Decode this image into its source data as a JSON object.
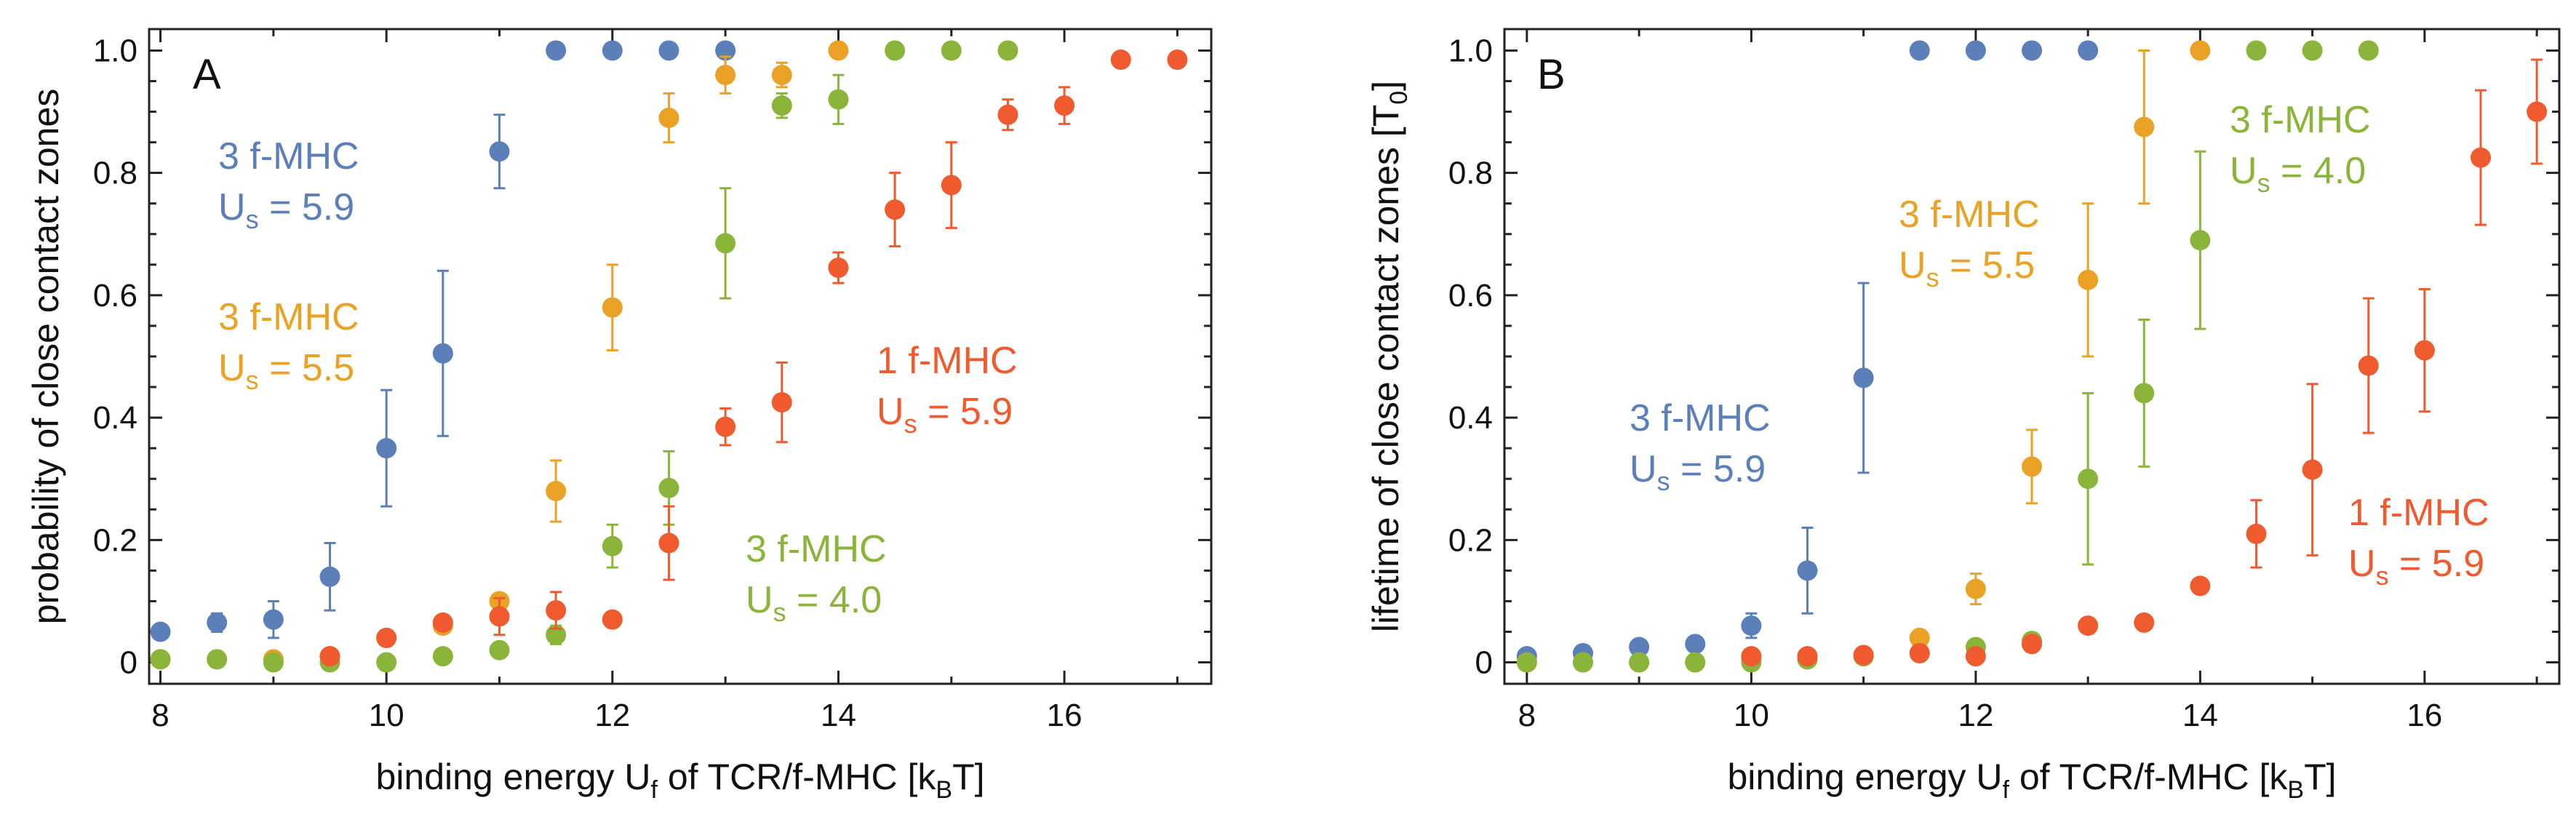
{
  "colors": {
    "blue": "#5b7fb9",
    "orange": "#e9a226",
    "green": "#8bb43a",
    "red": "#ef5a2e"
  },
  "chart_data": [
    {
      "type": "scatter",
      "panel": "A",
      "xlabel": "binding energy U_f of TCR/f-MHC [k_B T]",
      "xlabel_parts": {
        "pre": "binding energy U",
        "sub": "f",
        "mid": " of TCR/f-MHC [k",
        "sub2": "B",
        "post": "T]"
      },
      "ylabel": "probability of close contact zones",
      "xlim": [
        7.9,
        17.3
      ],
      "ylim": [
        -0.035,
        1.035
      ],
      "xticks": [
        8,
        10,
        12,
        14,
        16
      ],
      "yticks": [
        0,
        0.2,
        0.4,
        0.6,
        0.8,
        1.0
      ],
      "ytick_labels": [
        "0",
        "0.2",
        "0.4",
        "0.6",
        "0.8",
        "1.0"
      ],
      "series": [
        {
          "name": "3 f-MHC, U_s = 5.9",
          "color": "blue",
          "x": [
            8,
            8.5,
            9,
            9.5,
            10,
            10.5,
            11,
            11.5,
            12,
            12.5,
            13
          ],
          "y": [
            0.05,
            0.065,
            0.07,
            0.14,
            0.35,
            0.505,
            0.835,
            1.0,
            1.0,
            1.0,
            1.0
          ],
          "err": [
            0.008,
            0.015,
            0.03,
            0.055,
            0.095,
            0.135,
            0.06,
            0,
            0,
            0,
            0
          ]
        },
        {
          "name": "3 f-MHC, U_s = 5.5",
          "color": "orange",
          "x": [
            8,
            8.5,
            9,
            9.5,
            10,
            10.5,
            11,
            11.5,
            12,
            12.5,
            13,
            13.5,
            14
          ],
          "y": [
            0.005,
            0.005,
            0.005,
            0.01,
            0.04,
            0.06,
            0.1,
            0.28,
            0.58,
            0.89,
            0.96,
            0.96,
            1.0
          ],
          "err": [
            0.004,
            0.004,
            0.004,
            0.006,
            0.01,
            0.01,
            0.012,
            0.05,
            0.07,
            0.04,
            0.03,
            0.02,
            0
          ]
        },
        {
          "name": "3 f-MHC, U_s = 4.0",
          "color": "green",
          "x": [
            8,
            8.5,
            9,
            9.5,
            10,
            10.5,
            11,
            11.5,
            12,
            12.5,
            13,
            13.5,
            14,
            14.5,
            15,
            15.5
          ],
          "y": [
            0.005,
            0.005,
            0.0,
            0.0,
            0.0,
            0.01,
            0.02,
            0.045,
            0.19,
            0.285,
            0.685,
            0.91,
            0.92,
            1.0,
            1.0,
            1.0
          ],
          "err": [
            0.003,
            0.003,
            0.003,
            0.003,
            0.003,
            0.005,
            0.008,
            0.015,
            0.035,
            0.06,
            0.09,
            0.02,
            0.04,
            0,
            0,
            0
          ]
        },
        {
          "name": "1 f-MHC, U_s = 5.9",
          "color": "red",
          "x": [
            9.5,
            10,
            10.5,
            11,
            11.5,
            12,
            12.5,
            13,
            13.5,
            14,
            14.5,
            15,
            15.5,
            16,
            16.5,
            17
          ],
          "y": [
            0.01,
            0.04,
            0.065,
            0.075,
            0.085,
            0.07,
            0.195,
            0.385,
            0.425,
            0.645,
            0.74,
            0.78,
            0.895,
            0.91,
            0.985,
            0.985
          ],
          "err": [
            0.005,
            0.008,
            0.01,
            0.03,
            0.03,
            0.01,
            0.06,
            0.03,
            0.065,
            0.025,
            0.06,
            0.07,
            0.025,
            0.03,
            0.01,
            0.01
          ]
        }
      ],
      "annotations": [
        {
          "line1": "3 f-MHC",
          "line2_pre": "U",
          "line2_sub": "s",
          "line2_post": " = 5.9",
          "color": "blue"
        },
        {
          "line1": "3 f-MHC",
          "line2_pre": "U",
          "line2_sub": "s",
          "line2_post": " = 5.5",
          "color": "orange"
        },
        {
          "line1": "1 f-MHC",
          "line2_pre": "U",
          "line2_sub": "s",
          "line2_post": " = 5.9",
          "color": "red"
        },
        {
          "line1": "3 f-MHC",
          "line2_pre": "U",
          "line2_sub": "s",
          "line2_post": " = 4.0",
          "color": "green"
        }
      ]
    },
    {
      "type": "scatter",
      "panel": "B",
      "xlabel": "binding energy U_f of TCR/f-MHC [k_B T]",
      "xlabel_parts": {
        "pre": "binding energy U",
        "sub": "f",
        "mid": " of TCR/f-MHC [k",
        "sub2": "B",
        "post": "T]"
      },
      "ylabel": "lifetime of close contact zones [T_0]",
      "ylabel_parts": {
        "pre": "lifetime of close contact zones [T",
        "sub": "0",
        "post": "]"
      },
      "xlim": [
        7.8,
        17.2
      ],
      "ylim": [
        -0.035,
        1.035
      ],
      "xticks": [
        8,
        10,
        12,
        14,
        16
      ],
      "yticks": [
        0,
        0.2,
        0.4,
        0.6,
        0.8,
        1.0
      ],
      "ytick_labels": [
        "0",
        "0.2",
        "0.4",
        "0.6",
        "0.8",
        "1.0"
      ],
      "series": [
        {
          "name": "3 f-MHC, U_s = 5.9",
          "color": "blue",
          "x": [
            8,
            8.5,
            9,
            9.5,
            10,
            10.5,
            11,
            11.5,
            12,
            12.5,
            13
          ],
          "y": [
            0.01,
            0.015,
            0.025,
            0.03,
            0.06,
            0.15,
            0.465,
            1.0,
            1.0,
            1.0,
            1.0
          ],
          "err": [
            0.005,
            0.008,
            0.012,
            0.01,
            0.02,
            0.07,
            0.155,
            0,
            0,
            0,
            0
          ]
        },
        {
          "name": "3 f-MHC, U_s = 5.5",
          "color": "orange",
          "x": [
            8,
            8.5,
            9,
            9.5,
            10,
            10.5,
            11,
            11.5,
            12,
            12.5,
            13,
            13.5,
            14
          ],
          "y": [
            0.0,
            0.0,
            0.0,
            0.0,
            0.005,
            0.005,
            0.01,
            0.04,
            0.12,
            0.32,
            0.625,
            0.875,
            1.0
          ],
          "err": [
            0.003,
            0.003,
            0.003,
            0.003,
            0.003,
            0.003,
            0.005,
            0.01,
            0.025,
            0.06,
            0.125,
            0.125,
            0
          ]
        },
        {
          "name": "3 f-MHC, U_s = 4.0",
          "color": "green",
          "x": [
            8,
            8.5,
            9,
            9.5,
            10,
            10.5,
            11,
            11.5,
            12,
            12.5,
            13,
            13.5,
            14,
            14.5,
            15,
            15.5
          ],
          "y": [
            0.0,
            0.0,
            0.0,
            0.0,
            0.0,
            0.005,
            0.01,
            0.015,
            0.025,
            0.035,
            0.3,
            0.44,
            0.69,
            1.0,
            1.0,
            1.0
          ],
          "err": [
            0.002,
            0.002,
            0.002,
            0.002,
            0.002,
            0.003,
            0.004,
            0.005,
            0.008,
            0.01,
            0.14,
            0.12,
            0.145,
            0,
            0,
            0
          ]
        },
        {
          "name": "1 f-MHC, U_s = 5.9",
          "color": "red",
          "x": [
            10,
            10.5,
            11,
            11.5,
            12,
            12.5,
            13,
            13.5,
            14,
            14.5,
            15,
            15.5,
            16,
            16.5,
            17
          ],
          "y": [
            0.01,
            0.01,
            0.012,
            0.015,
            0.01,
            0.03,
            0.06,
            0.065,
            0.125,
            0.21,
            0.315,
            0.485,
            0.51,
            0.825,
            0.9
          ],
          "err": [
            0.004,
            0.004,
            0.005,
            0.005,
            0.005,
            0.01,
            0.008,
            0.01,
            0.01,
            0.055,
            0.14,
            0.11,
            0.1,
            0.11,
            0.085
          ]
        }
      ],
      "annotations": [
        {
          "line1": "3 f-MHC",
          "line2_pre": "U",
          "line2_sub": "s",
          "line2_post": " = 5.5",
          "color": "orange"
        },
        {
          "line1": "3 f-MHC",
          "line2_pre": "U",
          "line2_sub": "s",
          "line2_post": " = 4.0",
          "color": "green"
        },
        {
          "line1": "3 f-MHC",
          "line2_pre": "U",
          "line2_sub": "s",
          "line2_post": " = 5.9",
          "color": "blue"
        },
        {
          "line1": "1 f-MHC",
          "line2_pre": "U",
          "line2_sub": "s",
          "line2_post": " = 5.9",
          "color": "red"
        }
      ]
    }
  ]
}
